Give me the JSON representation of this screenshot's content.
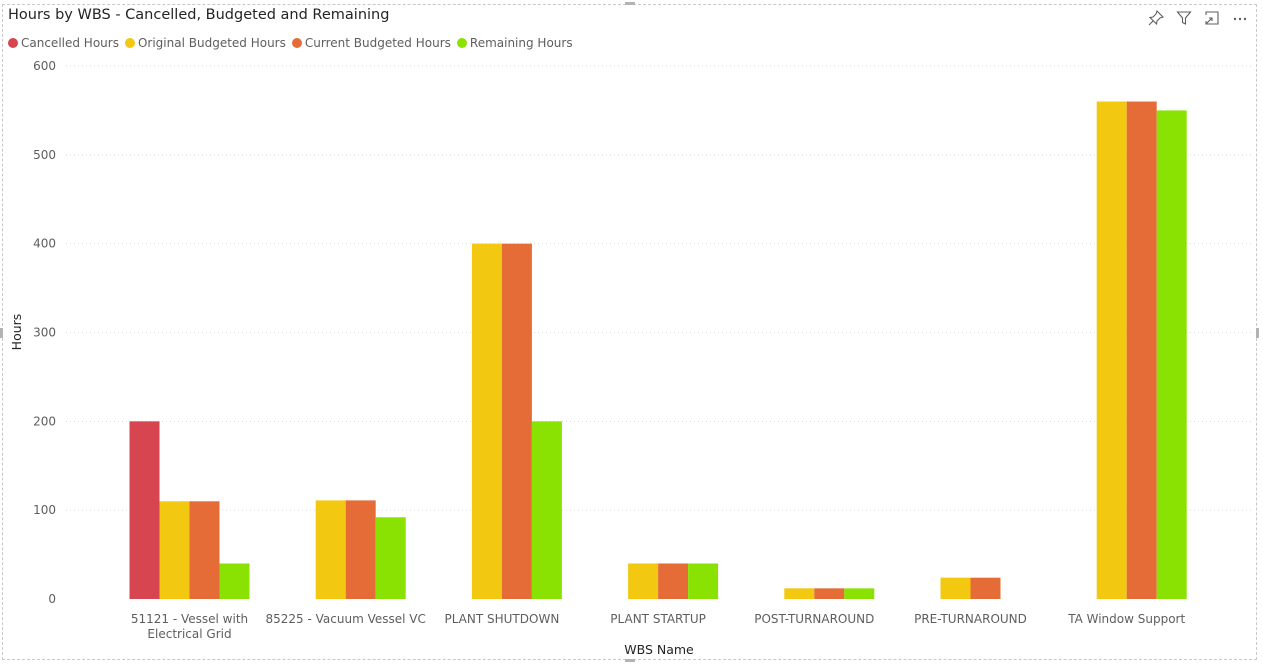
{
  "title": "Hours by WBS - Cancelled, Budgeted and Remaining",
  "header_icons": [
    "pin-icon",
    "filter-icon",
    "focus-mode-icon",
    "more-options-icon"
  ],
  "chart_data": {
    "type": "bar",
    "title": "Hours by WBS - Cancelled, Budgeted and Remaining",
    "xlabel": "WBS Name",
    "ylabel": "Hours",
    "ylim": [
      0,
      600
    ],
    "yticks": [
      0,
      100,
      200,
      300,
      400,
      500,
      600
    ],
    "grid": true,
    "legend_position": "top-left",
    "categories": [
      "51121 - Vessel with Electrical Grid",
      "85225 - Vacuum Vessel VC",
      "PLANT SHUTDOWN",
      "PLANT STARTUP",
      "POST-TURNAROUND",
      "PRE-TURNAROUND",
      "TA Window Support"
    ],
    "series": [
      {
        "name": "Cancelled Hours",
        "color": "#d64550",
        "values": [
          200,
          null,
          null,
          null,
          null,
          null,
          null
        ]
      },
      {
        "name": "Original Budgeted Hours",
        "color": "#f2c811",
        "values": [
          110,
          111,
          400,
          40,
          12,
          24,
          560
        ]
      },
      {
        "name": "Current Budgeted Hours",
        "color": "#e66c37",
        "values": [
          110,
          111,
          400,
          40,
          12,
          24,
          560
        ]
      },
      {
        "name": "Remaining Hours",
        "color": "#8ae202",
        "values": [
          40,
          92,
          200,
          40,
          12,
          null,
          550
        ]
      }
    ]
  }
}
